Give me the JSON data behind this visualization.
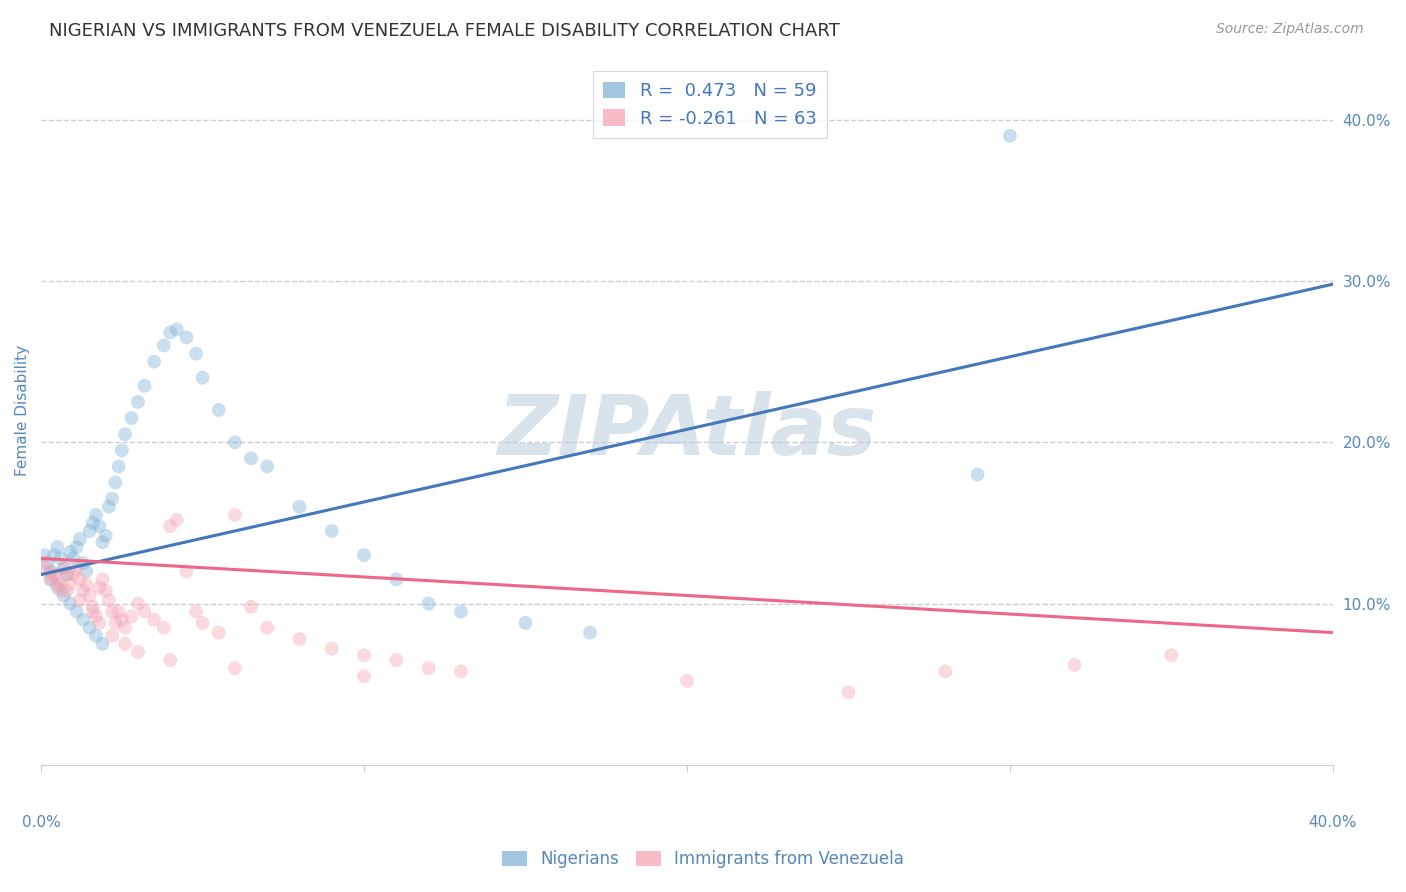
{
  "title": "NIGERIAN VS IMMIGRANTS FROM VENEZUELA FEMALE DISABILITY CORRELATION CHART",
  "source": "Source: ZipAtlas.com",
  "ylabel": "Female Disability",
  "right_yticks": [
    "40.0%",
    "30.0%",
    "20.0%",
    "10.0%"
  ],
  "right_ytick_vals": [
    0.4,
    0.3,
    0.2,
    0.1
  ],
  "watermark": "ZIPAtlas",
  "xmin": 0.0,
  "xmax": 0.4,
  "ymin": 0.0,
  "ymax": 0.44,
  "blue_R": 0.473,
  "blue_N": 59,
  "pink_R": -0.261,
  "pink_N": 63,
  "blue_color": "#7BAFD4",
  "pink_color": "#F4A0B0",
  "blue_line_color": "#4477BB",
  "pink_line_color": "#EE6688",
  "legend_label_blue": "Nigerians",
  "legend_label_pink": "Immigrants from Venezuela",
  "blue_scatter_x": [
    0.001,
    0.002,
    0.003,
    0.004,
    0.005,
    0.006,
    0.007,
    0.008,
    0.009,
    0.01,
    0.011,
    0.012,
    0.013,
    0.014,
    0.015,
    0.016,
    0.017,
    0.018,
    0.019,
    0.02,
    0.021,
    0.022,
    0.023,
    0.024,
    0.025,
    0.026,
    0.028,
    0.03,
    0.032,
    0.035,
    0.038,
    0.04,
    0.042,
    0.045,
    0.048,
    0.05,
    0.055,
    0.06,
    0.065,
    0.07,
    0.08,
    0.09,
    0.1,
    0.11,
    0.12,
    0.13,
    0.15,
    0.17,
    0.003,
    0.005,
    0.007,
    0.009,
    0.011,
    0.013,
    0.015,
    0.017,
    0.019,
    0.3,
    0.29
  ],
  "blue_scatter_y": [
    0.13,
    0.125,
    0.12,
    0.13,
    0.135,
    0.128,
    0.122,
    0.118,
    0.132,
    0.128,
    0.135,
    0.14,
    0.125,
    0.12,
    0.145,
    0.15,
    0.155,
    0.148,
    0.138,
    0.142,
    0.16,
    0.165,
    0.175,
    0.185,
    0.195,
    0.205,
    0.215,
    0.225,
    0.235,
    0.25,
    0.26,
    0.268,
    0.27,
    0.265,
    0.255,
    0.24,
    0.22,
    0.2,
    0.19,
    0.185,
    0.16,
    0.145,
    0.13,
    0.115,
    0.1,
    0.095,
    0.088,
    0.082,
    0.115,
    0.11,
    0.105,
    0.1,
    0.095,
    0.09,
    0.085,
    0.08,
    0.075,
    0.39,
    0.18
  ],
  "pink_scatter_x": [
    0.001,
    0.002,
    0.003,
    0.004,
    0.005,
    0.006,
    0.007,
    0.008,
    0.009,
    0.01,
    0.011,
    0.012,
    0.013,
    0.014,
    0.015,
    0.016,
    0.017,
    0.018,
    0.019,
    0.02,
    0.021,
    0.022,
    0.023,
    0.024,
    0.025,
    0.026,
    0.028,
    0.03,
    0.032,
    0.035,
    0.038,
    0.04,
    0.042,
    0.045,
    0.048,
    0.05,
    0.055,
    0.06,
    0.065,
    0.07,
    0.08,
    0.09,
    0.1,
    0.11,
    0.12,
    0.13,
    0.2,
    0.25,
    0.35,
    0.004,
    0.006,
    0.008,
    0.012,
    0.016,
    0.018,
    0.022,
    0.026,
    0.03,
    0.04,
    0.06,
    0.1,
    0.32,
    0.28
  ],
  "pink_scatter_y": [
    0.125,
    0.12,
    0.115,
    0.118,
    0.112,
    0.108,
    0.122,
    0.118,
    0.112,
    0.118,
    0.122,
    0.115,
    0.108,
    0.112,
    0.105,
    0.098,
    0.092,
    0.11,
    0.115,
    0.108,
    0.102,
    0.095,
    0.088,
    0.095,
    0.09,
    0.085,
    0.092,
    0.1,
    0.095,
    0.09,
    0.085,
    0.148,
    0.152,
    0.12,
    0.095,
    0.088,
    0.082,
    0.155,
    0.098,
    0.085,
    0.078,
    0.072,
    0.068,
    0.065,
    0.06,
    0.058,
    0.052,
    0.045,
    0.068,
    0.118,
    0.112,
    0.108,
    0.102,
    0.095,
    0.088,
    0.08,
    0.075,
    0.07,
    0.065,
    0.06,
    0.055,
    0.062,
    0.058
  ],
  "blue_line_x": [
    0.0,
    0.4
  ],
  "blue_line_y": [
    0.118,
    0.298
  ],
  "pink_line_x": [
    0.0,
    0.4
  ],
  "pink_line_y": [
    0.128,
    0.082
  ],
  "grid_color": "#CCCCDD",
  "grid_yticks": [
    0.1,
    0.2,
    0.3,
    0.4
  ],
  "title_color": "#333333",
  "title_fontsize": 13,
  "tick_label_color": "#5588BB",
  "watermark_color": "#BBCCDD",
  "scatter_size": 100,
  "scatter_alpha": 0.4,
  "legend_fontsize": 13
}
